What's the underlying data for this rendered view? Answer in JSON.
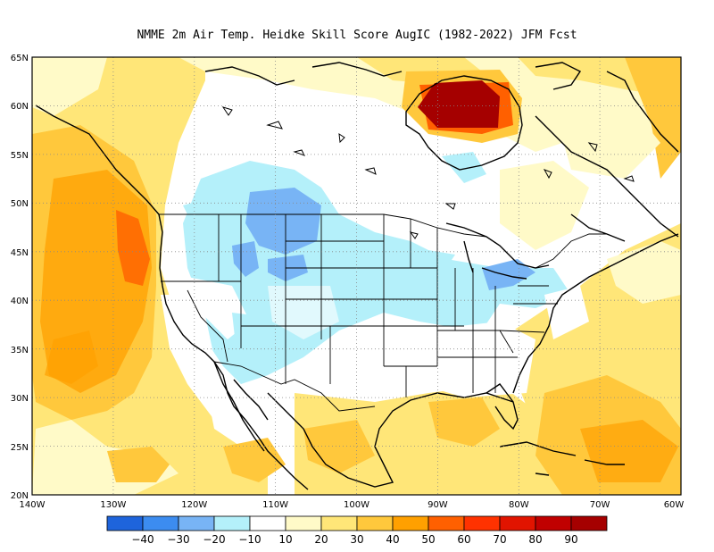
{
  "title": "NMME  2m Air Temp. Heidke Skill Score AugIC (1982-2022) JFM Fcst",
  "map": {
    "lon_range": [
      -140,
      -60
    ],
    "lat_range": [
      20,
      65
    ],
    "lat_ticks": [
      "65N",
      "60N",
      "55N",
      "50N",
      "45N",
      "40N",
      "35N",
      "30N",
      "25N",
      "20N"
    ],
    "lon_ticks": [
      "140W",
      "130W",
      "120W",
      "110W",
      "100W",
      "90W",
      "80W",
      "70W",
      "60W"
    ],
    "gridlines": "dotted"
  },
  "colorbar": {
    "colors": [
      "#1e64dc",
      "#3c8cf0",
      "#78b4f5",
      "#b4f0fa",
      "#ffffff",
      "#fffac8",
      "#ffe678",
      "#ffc83c",
      "#ffa000",
      "#ff6000",
      "#ff3200",
      "#e11400",
      "#c00000",
      "#a50000"
    ],
    "labels": [
      "-40",
      "-30",
      "-20",
      "-10",
      "10",
      "20",
      "30",
      "40",
      "50",
      "60",
      "70",
      "80",
      "90"
    ]
  }
}
